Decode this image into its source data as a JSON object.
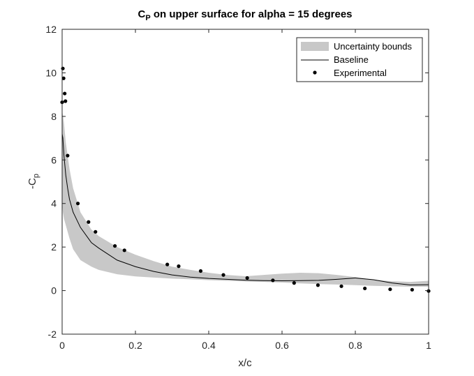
{
  "chart_data": {
    "type": "line",
    "title": {
      "main": "C",
      "sub": "P",
      "rest": " on upper surface for alpha = 15 degrees"
    },
    "xlabel": "x/c",
    "ylabel": {
      "main": "-C",
      "sub": "p"
    },
    "xlim": [
      0,
      1
    ],
    "ylim": [
      -2,
      12
    ],
    "xticks": [
      {
        "value": 0,
        "label": "0"
      },
      {
        "value": 0.2,
        "label": "0.2"
      },
      {
        "value": 0.4,
        "label": "0.4"
      },
      {
        "value": 0.6,
        "label": "0.6"
      },
      {
        "value": 0.8,
        "label": "0.8"
      },
      {
        "value": 1,
        "label": "1"
      }
    ],
    "yticks": [
      {
        "value": -2,
        "label": "-2"
      },
      {
        "value": 0,
        "label": "0"
      },
      {
        "value": 2,
        "label": "2"
      },
      {
        "value": 4,
        "label": "4"
      },
      {
        "value": 6,
        "label": "6"
      },
      {
        "value": 8,
        "label": "8"
      },
      {
        "value": 10,
        "label": "10"
      },
      {
        "value": 12,
        "label": "12"
      }
    ],
    "grid": false,
    "legend_position": "top-right",
    "series": [
      {
        "name": "Uncertainty bounds",
        "kind": "band",
        "color": "#c8c8c8",
        "x": [
          0,
          0.002,
          0.005,
          0.01,
          0.02,
          0.03,
          0.05,
          0.08,
          0.1,
          0.15,
          0.2,
          0.25,
          0.3,
          0.35,
          0.4,
          0.45,
          0.5,
          0.55,
          0.6,
          0.65,
          0.7,
          0.75,
          0.8,
          0.85,
          0.9,
          0.95,
          1.0
        ],
        "upper": [
          8.2,
          8.1,
          7.7,
          6.8,
          5.6,
          4.7,
          3.6,
          2.8,
          2.5,
          2.0,
          1.65,
          1.35,
          1.1,
          0.95,
          0.82,
          0.72,
          0.66,
          0.72,
          0.78,
          0.82,
          0.8,
          0.72,
          0.62,
          0.5,
          0.43,
          0.4,
          0.45
        ],
        "lower": [
          4.0,
          3.6,
          3.3,
          3.0,
          2.4,
          1.9,
          1.4,
          1.1,
          0.95,
          0.75,
          0.65,
          0.6,
          0.55,
          0.52,
          0.48,
          0.45,
          0.42,
          0.4,
          0.37,
          0.33,
          0.3,
          0.28,
          0.25,
          0.22,
          0.2,
          0.18,
          0.18
        ]
      },
      {
        "name": "Baseline",
        "kind": "line",
        "color": "#000000",
        "x": [
          0,
          0.002,
          0.005,
          0.01,
          0.015,
          0.02,
          0.03,
          0.05,
          0.08,
          0.1,
          0.15,
          0.2,
          0.25,
          0.3,
          0.35,
          0.4,
          0.45,
          0.5,
          0.55,
          0.6,
          0.65,
          0.7,
          0.75,
          0.8,
          0.85,
          0.9,
          0.95,
          1.0
        ],
        "y": [
          7.2,
          7.0,
          6.2,
          5.3,
          4.7,
          4.2,
          3.6,
          2.9,
          2.2,
          1.95,
          1.4,
          1.1,
          0.88,
          0.72,
          0.62,
          0.56,
          0.52,
          0.48,
          0.46,
          0.45,
          0.46,
          0.47,
          0.52,
          0.58,
          0.5,
          0.35,
          0.26,
          0.27
        ]
      },
      {
        "name": "Experimental",
        "kind": "scatter",
        "color": "#000000",
        "x": [
          0.0,
          0.002,
          0.004,
          0.007,
          0.009,
          0.015,
          0.043,
          0.072,
          0.091,
          0.144,
          0.17,
          0.287,
          0.318,
          0.378,
          0.44,
          0.505,
          0.575,
          0.633,
          0.698,
          0.762,
          0.826,
          0.895,
          0.955,
          1.0
        ],
        "y": [
          8.65,
          10.2,
          9.75,
          9.05,
          8.7,
          6.2,
          4.0,
          3.15,
          2.7,
          2.05,
          1.85,
          1.2,
          1.12,
          0.9,
          0.72,
          0.58,
          0.47,
          0.35,
          0.25,
          0.2,
          0.1,
          0.06,
          0.04,
          -0.02
        ]
      }
    ]
  }
}
